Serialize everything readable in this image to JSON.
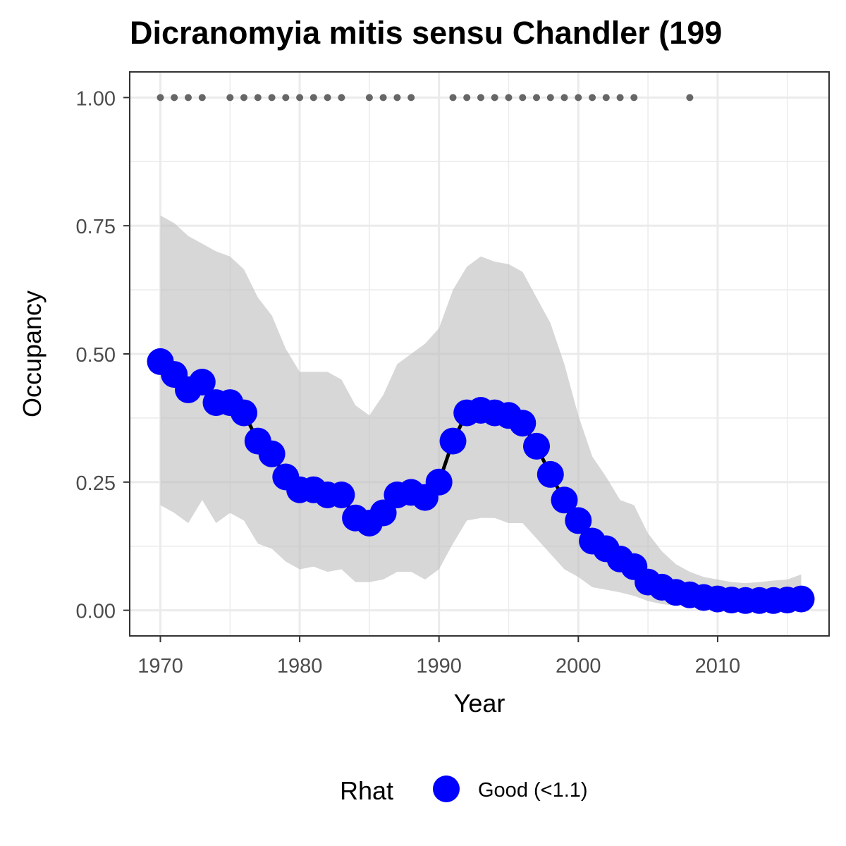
{
  "chart_data": {
    "type": "line",
    "title": "Dicranomyia mitis sensu Chandler (199",
    "xlabel": "Year",
    "ylabel": "Occupancy",
    "xlim": [
      1967.8,
      2018.0
    ],
    "ylim": [
      -0.05,
      1.05
    ],
    "x_ticks": [
      1970,
      1980,
      1990,
      2000,
      2010
    ],
    "x_tick_labels": [
      "1970",
      "1980",
      "1990",
      "2000",
      "2010"
    ],
    "y_ticks": [
      0,
      0.25,
      0.5,
      0.75,
      1.0
    ],
    "y_tick_labels": [
      "0.00",
      "0.25",
      "0.50",
      "0.75",
      "1.00"
    ],
    "grid": true,
    "legend": {
      "position": "bottom",
      "title": "Rhat",
      "entries": [
        {
          "label": "Good (<1.1)",
          "color": "#0000ff"
        }
      ]
    },
    "colors": {
      "points": "#0000ff",
      "line": "#000000",
      "ribbon": "#bfbfbf",
      "detections": "#666666",
      "panel_border": "#333333",
      "grid": "#ebebeb"
    },
    "series": [
      {
        "name": "Good (<1.1)",
        "x": [
          1970,
          1971,
          1972,
          1973,
          1974,
          1975,
          1976,
          1977,
          1978,
          1979,
          1980,
          1981,
          1982,
          1983,
          1984,
          1985,
          1986,
          1987,
          1988,
          1989,
          1990,
          1991,
          1992,
          1993,
          1994,
          1995,
          1996,
          1997,
          1998,
          1999,
          2000,
          2001,
          2002,
          2003,
          2004,
          2005,
          2006,
          2007,
          2008,
          2009,
          2010,
          2011,
          2012,
          2013,
          2014,
          2015,
          2016
        ],
        "y": [
          0.485,
          0.46,
          0.43,
          0.445,
          0.405,
          0.405,
          0.385,
          0.33,
          0.305,
          0.26,
          0.235,
          0.235,
          0.225,
          0.225,
          0.18,
          0.17,
          0.19,
          0.225,
          0.23,
          0.22,
          0.25,
          0.33,
          0.385,
          0.39,
          0.385,
          0.38,
          0.365,
          0.32,
          0.265,
          0.215,
          0.175,
          0.135,
          0.12,
          0.1,
          0.085,
          0.055,
          0.045,
          0.035,
          0.03,
          0.025,
          0.022,
          0.02,
          0.019,
          0.019,
          0.019,
          0.02,
          0.022
        ]
      }
    ],
    "ribbon": {
      "x": [
        1970,
        1971,
        1972,
        1973,
        1974,
        1975,
        1976,
        1977,
        1978,
        1979,
        1980,
        1981,
        1982,
        1983,
        1984,
        1985,
        1986,
        1987,
        1988,
        1989,
        1990,
        1991,
        1992,
        1993,
        1994,
        1995,
        1996,
        1997,
        1998,
        1999,
        2000,
        2001,
        2002,
        2003,
        2004,
        2005,
        2006,
        2007,
        2008,
        2009,
        2010,
        2011,
        2012,
        2013,
        2014,
        2015,
        2016
      ],
      "lower": [
        0.205,
        0.19,
        0.17,
        0.215,
        0.17,
        0.19,
        0.175,
        0.13,
        0.12,
        0.095,
        0.08,
        0.085,
        0.075,
        0.08,
        0.055,
        0.055,
        0.06,
        0.075,
        0.075,
        0.06,
        0.08,
        0.13,
        0.175,
        0.18,
        0.18,
        0.17,
        0.17,
        0.14,
        0.11,
        0.08,
        0.065,
        0.045,
        0.04,
        0.035,
        0.028,
        0.018,
        0.012,
        0.009,
        0.007,
        0.006,
        0.005,
        0.004,
        0.004,
        0.004,
        0.004,
        0.004,
        0.005
      ],
      "upper": [
        0.77,
        0.755,
        0.73,
        0.715,
        0.7,
        0.69,
        0.665,
        0.61,
        0.575,
        0.51,
        0.465,
        0.465,
        0.465,
        0.45,
        0.4,
        0.38,
        0.42,
        0.48,
        0.5,
        0.52,
        0.55,
        0.625,
        0.67,
        0.69,
        0.68,
        0.675,
        0.66,
        0.61,
        0.56,
        0.48,
        0.38,
        0.3,
        0.26,
        0.215,
        0.205,
        0.15,
        0.115,
        0.09,
        0.075,
        0.065,
        0.06,
        0.055,
        0.053,
        0.055,
        0.058,
        0.06,
        0.07
      ]
    },
    "detections": {
      "y": 1.0,
      "x": [
        1970,
        1971,
        1972,
        1973,
        1975,
        1976,
        1977,
        1978,
        1979,
        1980,
        1981,
        1982,
        1983,
        1985,
        1986,
        1987,
        1988,
        1991,
        1992,
        1993,
        1994,
        1995,
        1996,
        1997,
        1998,
        1999,
        2000,
        2001,
        2002,
        2003,
        2004,
        2008
      ]
    }
  }
}
